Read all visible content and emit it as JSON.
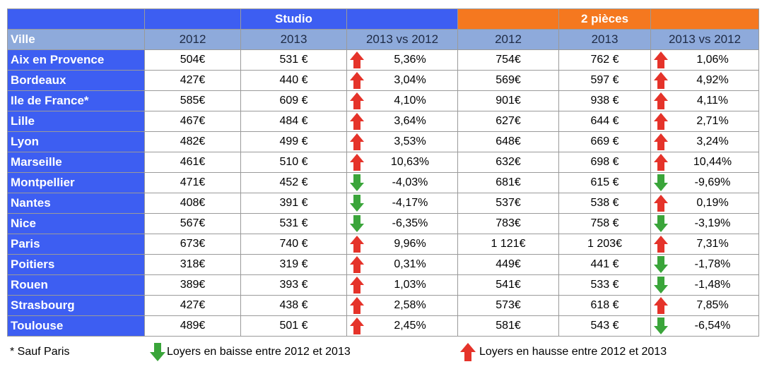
{
  "table": {
    "group_headers": [
      "Studio",
      "2 pièces"
    ],
    "columns": [
      "Ville",
      "2012",
      "2013",
      "2013 vs 2012",
      "2012",
      "2013",
      "2013 vs 2012"
    ],
    "rows": [
      [
        "Aix en Provence",
        "504€",
        "531 €",
        "5,36%",
        "754€",
        "762 €",
        "1,06%"
      ],
      [
        "Bordeaux",
        "427€",
        "440 €",
        "3,04%",
        "569€",
        "597 €",
        "4,92%"
      ],
      [
        "Ile de France*",
        "585€",
        "609 €",
        "4,10%",
        "901€",
        "938 €",
        "4,11%"
      ],
      [
        "Lille",
        "467€",
        "484 €",
        "3,64%",
        "627€",
        "644 €",
        "2,71%"
      ],
      [
        "Lyon",
        "482€",
        "499 €",
        "3,53%",
        "648€",
        "669 €",
        "3,24%"
      ],
      [
        "Marseille",
        "461€",
        "510 €",
        "10,63%",
        "632€",
        "698 €",
        "10,44%"
      ],
      [
        "Montpellier",
        "471€",
        "452 €",
        "-4,03%",
        "681€",
        "615 €",
        "-9,69%"
      ],
      [
        "Nantes",
        "408€",
        "391 €",
        "-4,17%",
        "537€",
        "538 €",
        "0,19%"
      ],
      [
        "Nice",
        "567€",
        "531 €",
        "-6,35%",
        "783€",
        "758 €",
        "-3,19%"
      ],
      [
        "Paris",
        "673€",
        "740 €",
        "9,96%",
        "1 121€",
        "1 203€",
        "7,31%"
      ],
      [
        "Poitiers",
        "318€",
        "319 €",
        "0,31%",
        "449€",
        "441 €",
        "-1,78%"
      ],
      [
        "Rouen",
        "389€",
        "393 €",
        "1,03%",
        "541€",
        "533 €",
        "-1,48%"
      ],
      [
        "Strasbourg",
        "427€",
        "438 €",
        "2,58%",
        "573€",
        "618 €",
        "7,85%"
      ],
      [
        "Toulouse",
        "489€",
        "501 €",
        "2,45%",
        "581€",
        "543 €",
        "-6,54%"
      ]
    ]
  },
  "footer": {
    "note": "* Sauf Paris",
    "legend_down": "Loyers en baisse entre 2012 et 2013",
    "legend_up": "Loyers en hausse entre 2012 et 2013"
  }
}
